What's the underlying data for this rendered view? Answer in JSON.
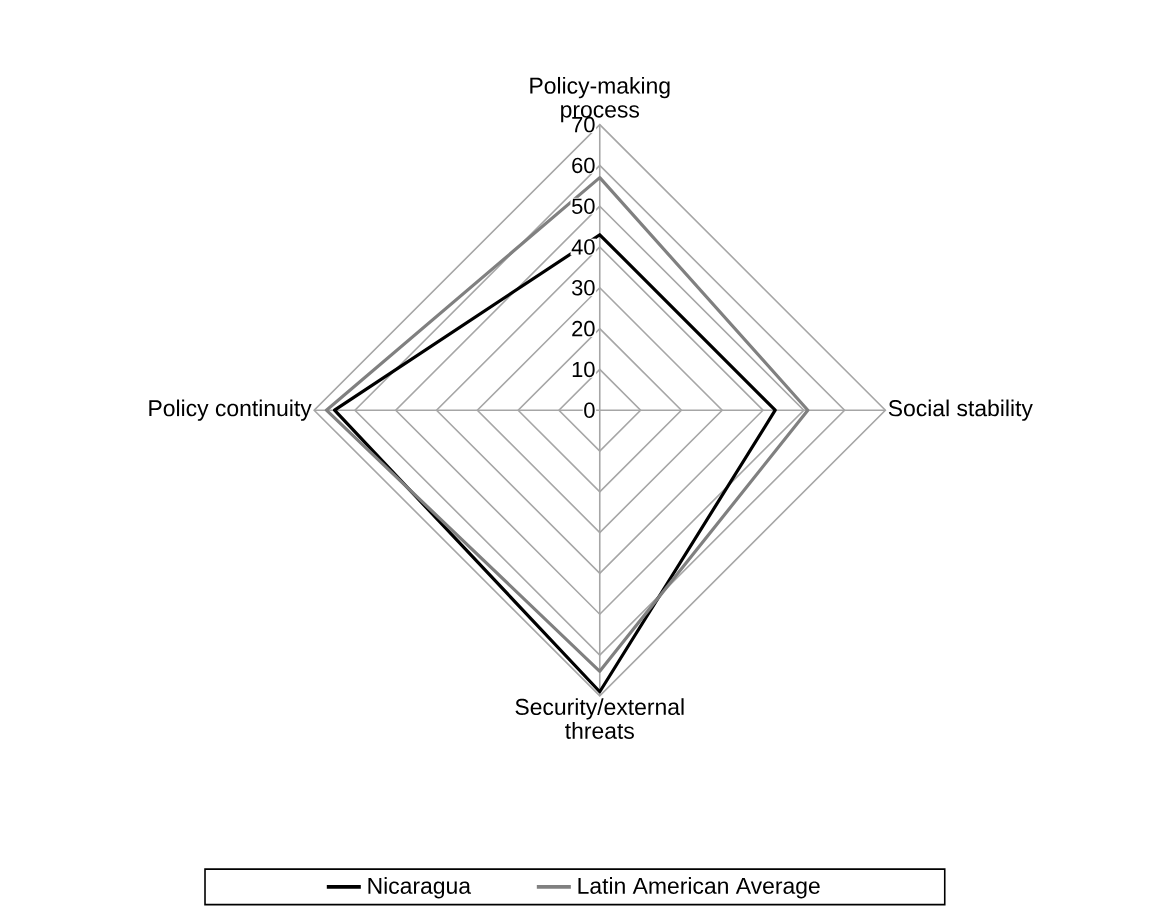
{
  "chart_data": {
    "type": "radar",
    "categories": [
      "Policy-making process",
      "Social stability",
      "Security/external threats",
      "Policy continuity"
    ],
    "series": [
      {
        "name": "Nicaragua",
        "color": "#000000",
        "values": [
          43,
          43,
          69,
          65
        ]
      },
      {
        "name": "Latin American Average",
        "color": "#808080",
        "values": [
          57,
          51,
          64,
          67
        ]
      }
    ],
    "ylim": [
      0,
      70
    ],
    "yticks": [
      0,
      10,
      20,
      30,
      40,
      50,
      60,
      70
    ],
    "grid": true,
    "legend": "bottom"
  }
}
